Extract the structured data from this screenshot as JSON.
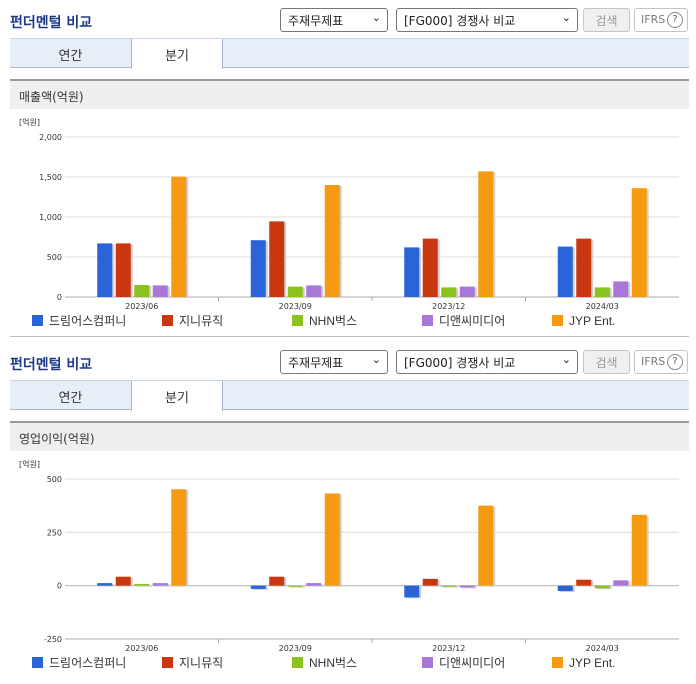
{
  "panels": [
    {
      "title": "펀더멘털 비교",
      "select1": "주재무제표",
      "select2": "[FG000] 경쟁사 비교",
      "search_label": "검색",
      "ifrs_label": "IFRS",
      "tabs": [
        "연간",
        "분기"
      ],
      "active_tab": "분기",
      "metric_title": "매출액(억원)"
    },
    {
      "title": "펀더멘털 비교",
      "select1": "주재무제표",
      "select2": "[FG000] 경쟁사 비교",
      "search_label": "검색",
      "ifrs_label": "IFRS",
      "tabs": [
        "연간",
        "분기"
      ],
      "active_tab": "분기",
      "metric_title": "영업이익(억원)"
    }
  ],
  "colors": [
    "#2a64d8",
    "#c8370f",
    "#8cc21e",
    "#a877d8",
    "#f59a11"
  ],
  "chart_data": [
    {
      "type": "bar",
      "unit_label": "[억원]",
      "categories": [
        "2023/06",
        "2023/09",
        "2023/12",
        "2024/03"
      ],
      "ylim": [
        0,
        2000
      ],
      "yticks": [
        0,
        500,
        1000,
        1500,
        2000
      ],
      "ytick_labels": [
        "0",
        "500",
        "1,000",
        "1,500",
        "2,000"
      ],
      "series": [
        {
          "name": "드림어스컴퍼니",
          "values": [
            670,
            710,
            620,
            630
          ]
        },
        {
          "name": "지니뮤직",
          "values": [
            670,
            945,
            730,
            730
          ]
        },
        {
          "name": "NHN벅스",
          "values": [
            150,
            130,
            120,
            120
          ]
        },
        {
          "name": "디앤씨미디어",
          "values": [
            145,
            145,
            130,
            195
          ]
        },
        {
          "name": "JYP Ent.",
          "values": [
            1505,
            1400,
            1570,
            1360
          ]
        }
      ]
    },
    {
      "type": "bar",
      "unit_label": "[억원]",
      "categories": [
        "2023/06",
        "2023/09",
        "2023/12",
        "2024/03"
      ],
      "ylim": [
        -250,
        500
      ],
      "yticks": [
        -250,
        0,
        250,
        500
      ],
      "ytick_labels": [
        "-250",
        "0",
        "250",
        "500"
      ],
      "series": [
        {
          "name": "드림어스컴퍼니",
          "values": [
            12,
            -15,
            -55,
            -25
          ]
        },
        {
          "name": "지니뮤직",
          "values": [
            42,
            42,
            32,
            28
          ]
        },
        {
          "name": "NHN벅스",
          "values": [
            8,
            -5,
            -3,
            -12
          ]
        },
        {
          "name": "디앤씨미디어",
          "values": [
            12,
            12,
            -8,
            25
          ]
        },
        {
          "name": "JYP Ent.",
          "values": [
            452,
            432,
            375,
            332
          ]
        }
      ]
    }
  ]
}
